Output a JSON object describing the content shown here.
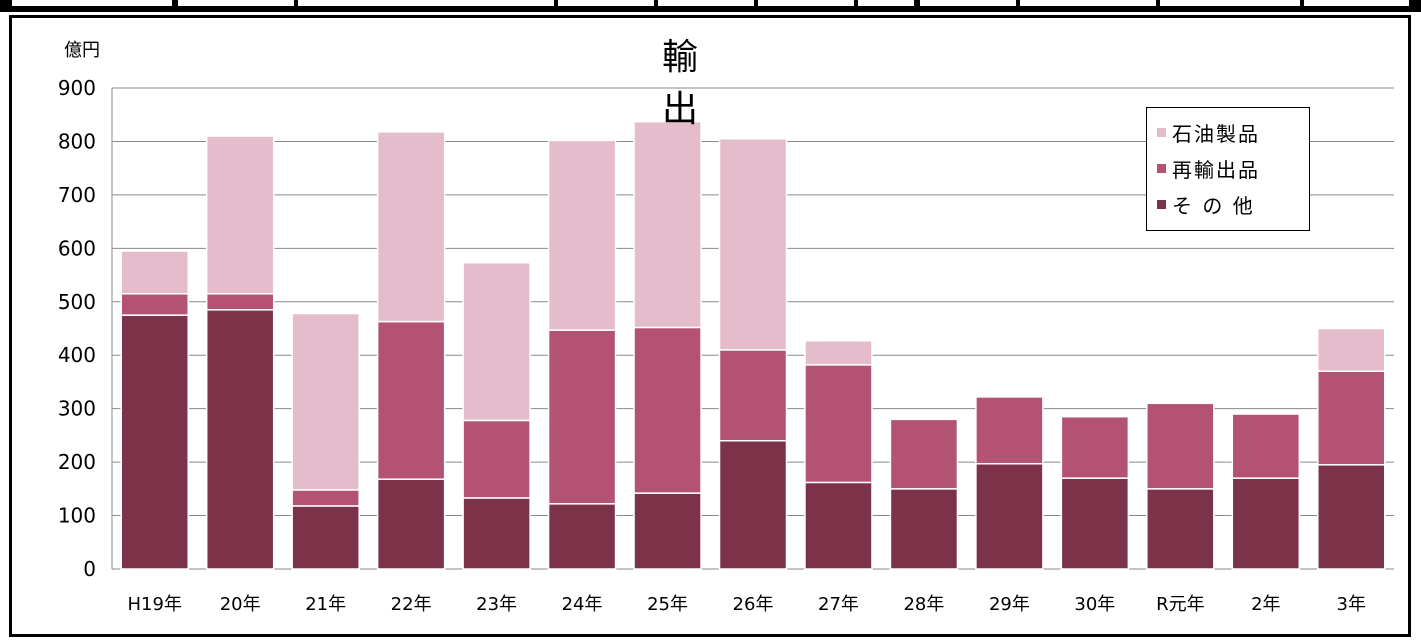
{
  "chart_data": {
    "type": "bar",
    "stacked": true,
    "title": "輸　　出",
    "unit_label": "億円",
    "categories": [
      "H19年",
      "20年",
      "21年",
      "22年",
      "23年",
      "24年",
      "25年",
      "26年",
      "27年",
      "28年",
      "29年",
      "30年",
      "R元年",
      "2年",
      "3年"
    ],
    "series": [
      {
        "name": "石油製品",
        "color": "#e4bccb",
        "values": [
          80,
          295,
          330,
          355,
          295,
          355,
          385,
          395,
          45,
          0,
          0,
          0,
          0,
          0,
          80
        ]
      },
      {
        "name": "再輸出品",
        "color": "#b35272",
        "values": [
          40,
          30,
          30,
          295,
          145,
          325,
          310,
          170,
          220,
          130,
          125,
          115,
          160,
          120,
          175
        ]
      },
      {
        "name": "そ の 他",
        "color": "#7c334a",
        "values": [
          475,
          485,
          118,
          168,
          133,
          122,
          142,
          240,
          162,
          150,
          197,
          170,
          150,
          170,
          195
        ]
      }
    ],
    "legend_order": [
      "石油製品",
      "再輸出品",
      "そ の 他"
    ],
    "ylim": [
      0,
      900
    ],
    "yticks": [
      0,
      100,
      200,
      300,
      400,
      500,
      600,
      700,
      800,
      900
    ],
    "grid": true,
    "legend_position": "top-right"
  }
}
